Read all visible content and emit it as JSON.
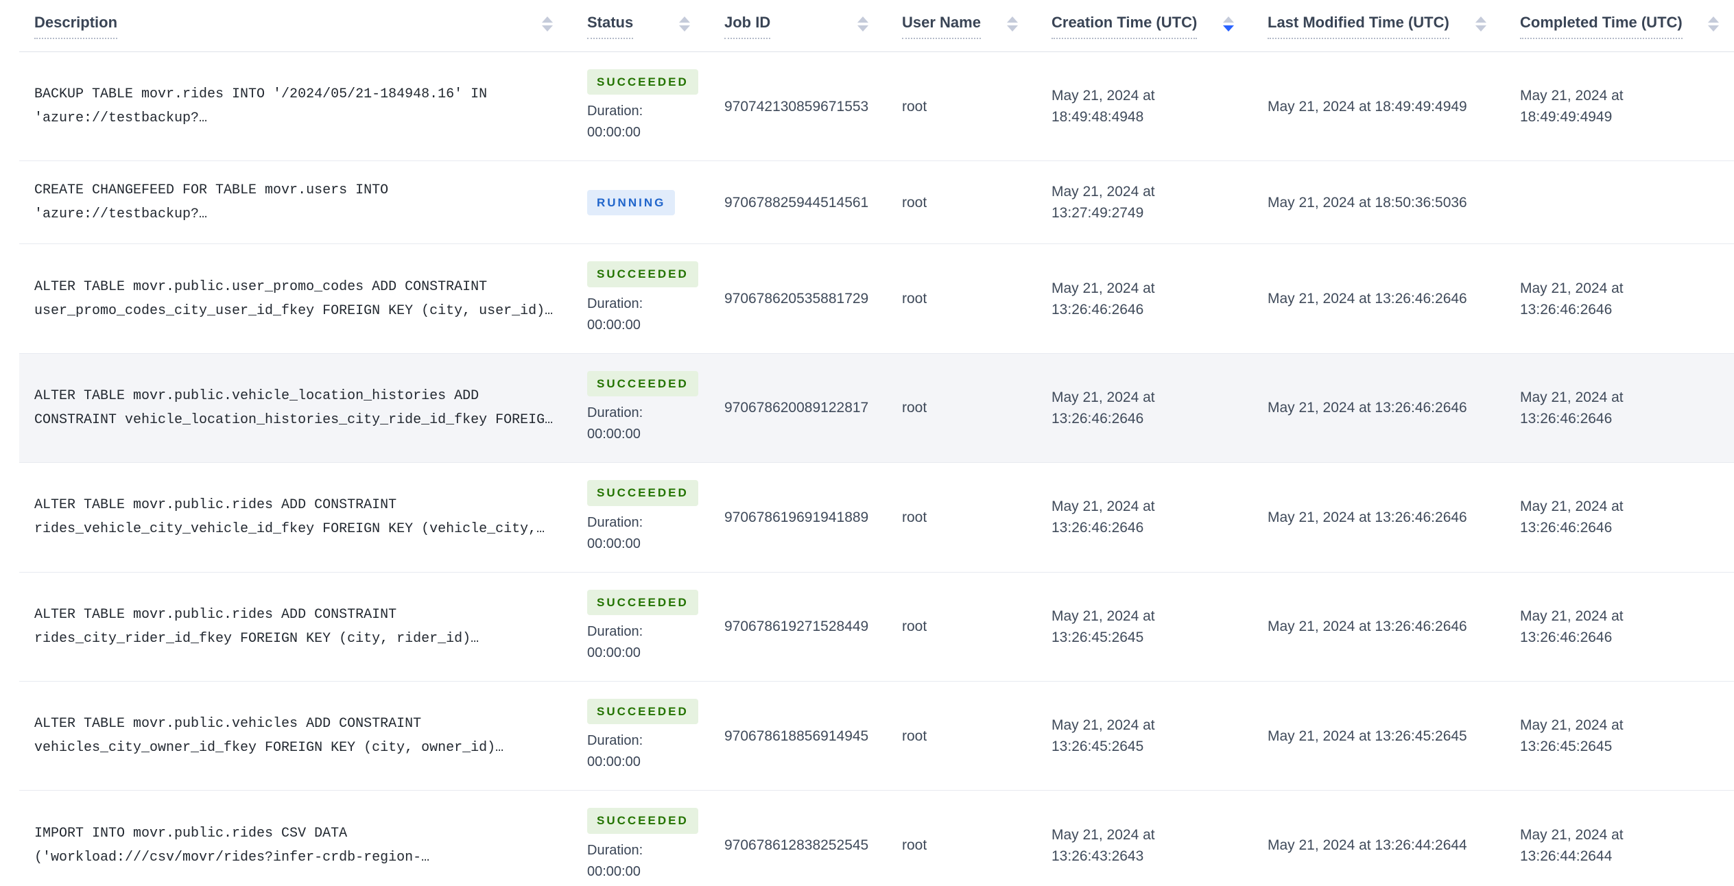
{
  "colors": {
    "succeeded_text": "#237300",
    "succeeded_bg": "#e6f2e0",
    "running_text": "#2065cb",
    "running_bg": "#e1ecfb",
    "sort_active": "#2962ff"
  },
  "table": {
    "duration_label": "Duration:",
    "columns": [
      {
        "id": "description",
        "label": "Description",
        "sort": "none"
      },
      {
        "id": "status",
        "label": "Status",
        "sort": "none"
      },
      {
        "id": "job_id",
        "label": "Job ID",
        "sort": "none"
      },
      {
        "id": "user_name",
        "label": "User Name",
        "sort": "none"
      },
      {
        "id": "creation_time",
        "label": "Creation Time (UTC)",
        "sort": "desc"
      },
      {
        "id": "last_modified_time",
        "label": "Last Modified Time (UTC)",
        "sort": "none"
      },
      {
        "id": "completed_time",
        "label": "Completed Time (UTC)",
        "sort": "none"
      }
    ],
    "rows": [
      {
        "description": "BACKUP TABLE movr.rides INTO '/2024/05/21-184948.16' IN 'azure://testbackup?…",
        "status": "SUCCEEDED",
        "status_kind": "succeeded",
        "duration": "00:00:00",
        "job_id": "970742130859671553",
        "user_name": "root",
        "creation_time": "May 21, 2024 at 18:49:48:4948",
        "last_modified_time": "May 21, 2024 at 18:49:49:4949",
        "completed_time": "May 21, 2024 at 18:49:49:4949",
        "highlighted": false
      },
      {
        "description": "CREATE CHANGEFEED FOR TABLE movr.users INTO 'azure://testbackup?…",
        "status": "RUNNING",
        "status_kind": "running",
        "duration": "",
        "job_id": "970678825944514561",
        "user_name": "root",
        "creation_time": "May 21, 2024 at 13:27:49:2749",
        "last_modified_time": "May 21, 2024 at 18:50:36:5036",
        "completed_time": "",
        "highlighted": false
      },
      {
        "description": "ALTER TABLE movr.public.user_promo_codes ADD CONSTRAINT user_promo_codes_city_user_id_fkey FOREIGN KEY (city, user_id)…",
        "status": "SUCCEEDED",
        "status_kind": "succeeded",
        "duration": "00:00:00",
        "job_id": "970678620535881729",
        "user_name": "root",
        "creation_time": "May 21, 2024 at 13:26:46:2646",
        "last_modified_time": "May 21, 2024 at 13:26:46:2646",
        "completed_time": "May 21, 2024 at 13:26:46:2646",
        "highlighted": false
      },
      {
        "description": "ALTER TABLE movr.public.vehicle_location_histories ADD CONSTRAINT vehicle_location_histories_city_ride_id_fkey FOREIG…",
        "status": "SUCCEEDED",
        "status_kind": "succeeded",
        "duration": "00:00:00",
        "job_id": "970678620089122817",
        "user_name": "root",
        "creation_time": "May 21, 2024 at 13:26:46:2646",
        "last_modified_time": "May 21, 2024 at 13:26:46:2646",
        "completed_time": "May 21, 2024 at 13:26:46:2646",
        "highlighted": true
      },
      {
        "description": "ALTER TABLE movr.public.rides ADD CONSTRAINT rides_vehicle_city_vehicle_id_fkey FOREIGN KEY (vehicle_city,…",
        "status": "SUCCEEDED",
        "status_kind": "succeeded",
        "duration": "00:00:00",
        "job_id": "970678619691941889",
        "user_name": "root",
        "creation_time": "May 21, 2024 at 13:26:46:2646",
        "last_modified_time": "May 21, 2024 at 13:26:46:2646",
        "completed_time": "May 21, 2024 at 13:26:46:2646",
        "highlighted": false
      },
      {
        "description": "ALTER TABLE movr.public.rides ADD CONSTRAINT rides_city_rider_id_fkey FOREIGN KEY (city, rider_id)…",
        "status": "SUCCEEDED",
        "status_kind": "succeeded",
        "duration": "00:00:00",
        "job_id": "970678619271528449",
        "user_name": "root",
        "creation_time": "May 21, 2024 at 13:26:45:2645",
        "last_modified_time": "May 21, 2024 at 13:26:46:2646",
        "completed_time": "May 21, 2024 at 13:26:46:2646",
        "highlighted": false
      },
      {
        "description": "ALTER TABLE movr.public.vehicles ADD CONSTRAINT vehicles_city_owner_id_fkey FOREIGN KEY (city, owner_id)…",
        "status": "SUCCEEDED",
        "status_kind": "succeeded",
        "duration": "00:00:00",
        "job_id": "970678618856914945",
        "user_name": "root",
        "creation_time": "May 21, 2024 at 13:26:45:2645",
        "last_modified_time": "May 21, 2024 at 13:26:45:2645",
        "completed_time": "May 21, 2024 at 13:26:45:2645",
        "highlighted": false
      },
      {
        "description": "IMPORT INTO movr.public.rides CSV DATA ('workload:///csv/movr/rides?infer-crdb-region-…",
        "status": "SUCCEEDED",
        "status_kind": "succeeded",
        "duration": "00:00:00",
        "job_id": "970678612838252545",
        "user_name": "root",
        "creation_time": "May 21, 2024 at 13:26:43:2643",
        "last_modified_time": "May 21, 2024 at 13:26:44:2644",
        "completed_time": "May 21, 2024 at 13:26:44:2644",
        "highlighted": false
      }
    ]
  }
}
